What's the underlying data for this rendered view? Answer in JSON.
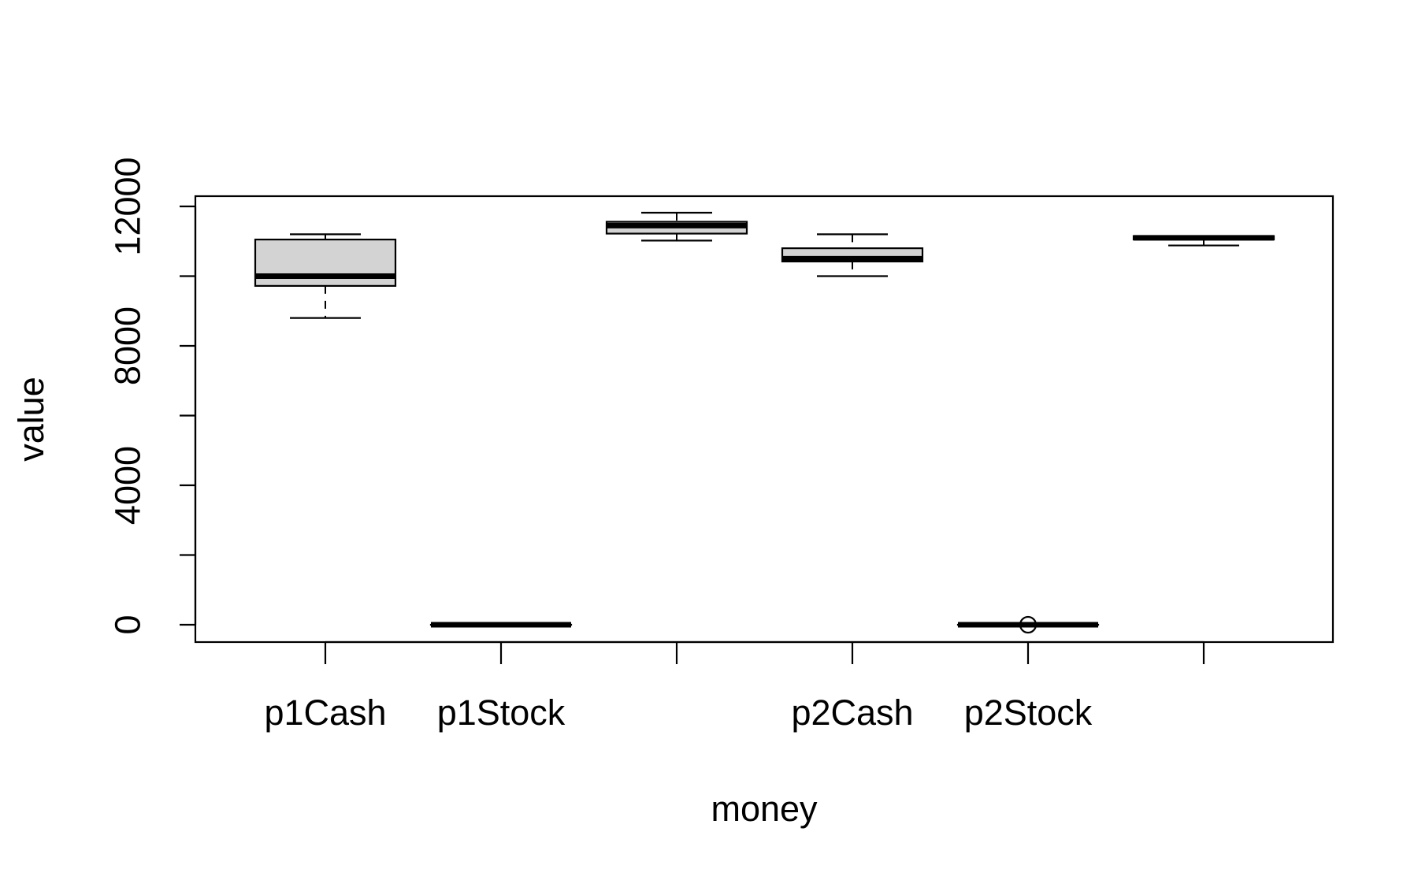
{
  "chart_data": {
    "type": "boxplot",
    "title": "",
    "xlabel": "money",
    "ylabel": "value",
    "ylim": [
      -400,
      12350
    ],
    "yticks": [
      0,
      2000,
      4000,
      6000,
      8000,
      10000,
      12000
    ],
    "ytick_labels": [
      "0",
      "",
      "4000",
      "",
      "8000",
      "",
      "12000"
    ],
    "categories": [
      "p1Cash",
      "p1Stock",
      "",
      "p2Cash",
      "p2Stock",
      ""
    ],
    "box_fill": "#d3d3d3",
    "boxes": [
      {
        "category": "p1Cash",
        "whisker_low": 8800,
        "q1": 9720,
        "median": 10000,
        "q3": 11050,
        "whisker_high": 11200,
        "outliers": []
      },
      {
        "category": "p1Stock",
        "whisker_low": 0,
        "q1": 0,
        "median": 0,
        "q3": 0,
        "whisker_high": 0,
        "outliers": []
      },
      {
        "category": "",
        "whisker_low": 11020,
        "q1": 11220,
        "median": 11450,
        "q3": 11560,
        "whisker_high": 11820,
        "outliers": []
      },
      {
        "category": "p2Cash",
        "whisker_low": 10000,
        "q1": 10420,
        "median": 10500,
        "q3": 10800,
        "whisker_high": 11200,
        "outliers": []
      },
      {
        "category": "p2Stock",
        "whisker_low": 0,
        "q1": 0,
        "median": 0,
        "q3": 0,
        "whisker_high": 0,
        "outliers": [
          0
        ]
      },
      {
        "category": "",
        "whisker_low": 10880,
        "q1": 11050,
        "median": 11100,
        "q3": 11150,
        "whisker_high": 11150,
        "outliers": []
      }
    ],
    "grid": false,
    "legend": "none"
  }
}
